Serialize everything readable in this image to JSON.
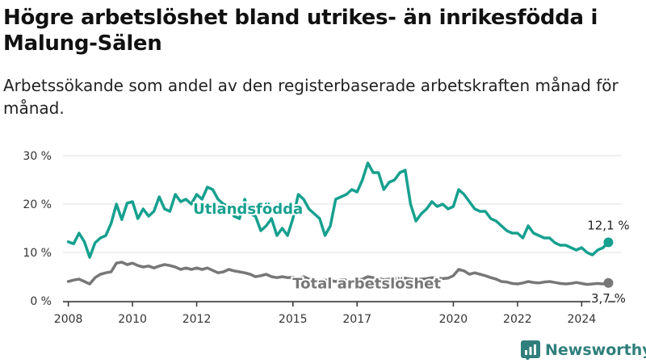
{
  "header": {
    "title": "Högre arbetslöshet bland utrikes- än inrikesfödda i Malung-Sälen",
    "subtitle": "Arbetssökande som andel av den registerbaserade arbetskraften månad för månad."
  },
  "brand": {
    "name": "Newsworthy",
    "icon": "bar-chart-logo-icon",
    "color": "#2f7f7c"
  },
  "colors": {
    "foreign_born": "#17a08f",
    "total": "#777777",
    "grid": "#e0e0e0",
    "axis": "#333333"
  },
  "chart_data": {
    "type": "line",
    "title": "Högre arbetslöshet bland utrikes- än inrikesfödda i Malung-Sälen",
    "subtitle": "Arbetssökande som andel av den registerbaserade arbetskraften månad för månad.",
    "xlabel": "",
    "ylabel": "",
    "xlim": [
      "2007-11",
      "2025-04"
    ],
    "ylim": [
      0,
      30
    ],
    "y_ticks": [
      "0 %",
      "10 %",
      "20 %",
      "30 %"
    ],
    "x_ticks": [
      "2008",
      "2010",
      "2012",
      "2015",
      "2017",
      "2020",
      "2022",
      "2024"
    ],
    "grid": "horizontal",
    "series": [
      {
        "name": "Utlandsfödda",
        "color": "#17a08f",
        "end_label": "12,1 %",
        "points": [
          [
            "2008-01",
            12.2
          ],
          [
            "2008-03",
            11.8
          ],
          [
            "2008-05",
            14.0
          ],
          [
            "2008-07",
            12.2
          ],
          [
            "2008-09",
            9.0
          ],
          [
            "2008-11",
            12.0
          ],
          [
            "2009-01",
            13.0
          ],
          [
            "2009-03",
            13.5
          ],
          [
            "2009-05",
            16.0
          ],
          [
            "2009-07",
            20.0
          ],
          [
            "2009-09",
            16.8
          ],
          [
            "2009-11",
            20.2
          ],
          [
            "2010-01",
            20.5
          ],
          [
            "2010-03",
            17.0
          ],
          [
            "2010-05",
            19.0
          ],
          [
            "2010-07",
            17.5
          ],
          [
            "2010-09",
            18.5
          ],
          [
            "2010-11",
            21.5
          ],
          [
            "2011-01",
            19.0
          ],
          [
            "2011-03",
            18.5
          ],
          [
            "2011-05",
            22.0
          ],
          [
            "2011-07",
            20.5
          ],
          [
            "2011-09",
            21.0
          ],
          [
            "2011-11",
            20.0
          ],
          [
            "2012-01",
            22.0
          ],
          [
            "2012-03",
            21.0
          ],
          [
            "2012-05",
            23.5
          ],
          [
            "2012-07",
            23.0
          ],
          [
            "2012-09",
            21.0
          ],
          [
            "2012-11",
            20.0
          ],
          [
            "2013-01",
            19.5
          ],
          [
            "2013-03",
            17.5
          ],
          [
            "2013-05",
            17.0
          ],
          [
            "2013-07",
            21.0
          ],
          [
            "2013-09",
            18.0
          ],
          [
            "2013-11",
            17.5
          ],
          [
            "2014-01",
            14.5
          ],
          [
            "2014-03",
            15.5
          ],
          [
            "2014-05",
            17.0
          ],
          [
            "2014-07",
            13.5
          ],
          [
            "2014-09",
            15.0
          ],
          [
            "2014-11",
            13.5
          ],
          [
            "2015-01",
            17.0
          ],
          [
            "2015-03",
            22.0
          ],
          [
            "2015-05",
            21.0
          ],
          [
            "2015-07",
            19.0
          ],
          [
            "2015-09",
            18.0
          ],
          [
            "2015-11",
            17.0
          ],
          [
            "2016-01",
            13.5
          ],
          [
            "2016-03",
            15.5
          ],
          [
            "2016-05",
            21.0
          ],
          [
            "2016-07",
            21.5
          ],
          [
            "2016-09",
            22.0
          ],
          [
            "2016-11",
            23.0
          ],
          [
            "2017-01",
            22.5
          ],
          [
            "2017-03",
            25.0
          ],
          [
            "2017-05",
            28.5
          ],
          [
            "2017-07",
            26.5
          ],
          [
            "2017-09",
            26.5
          ],
          [
            "2017-11",
            23.0
          ],
          [
            "2018-01",
            24.5
          ],
          [
            "2018-03",
            25.0
          ],
          [
            "2018-05",
            26.5
          ],
          [
            "2018-07",
            27.0
          ],
          [
            "2018-09",
            20.0
          ],
          [
            "2018-11",
            16.5
          ],
          [
            "2019-01",
            18.0
          ],
          [
            "2019-03",
            19.0
          ],
          [
            "2019-05",
            20.5
          ],
          [
            "2019-07",
            19.5
          ],
          [
            "2019-09",
            20.0
          ],
          [
            "2019-11",
            19.0
          ],
          [
            "2020-01",
            19.5
          ],
          [
            "2020-03",
            23.0
          ],
          [
            "2020-05",
            22.0
          ],
          [
            "2020-07",
            20.5
          ],
          [
            "2020-09",
            19.0
          ],
          [
            "2020-11",
            18.5
          ],
          [
            "2021-01",
            18.5
          ],
          [
            "2021-03",
            17.0
          ],
          [
            "2021-05",
            16.5
          ],
          [
            "2021-07",
            15.5
          ],
          [
            "2021-09",
            14.5
          ],
          [
            "2021-11",
            14.0
          ],
          [
            "2022-01",
            14.0
          ],
          [
            "2022-03",
            13.0
          ],
          [
            "2022-05",
            15.5
          ],
          [
            "2022-07",
            14.0
          ],
          [
            "2022-09",
            13.5
          ],
          [
            "2022-11",
            13.0
          ],
          [
            "2023-01",
            13.0
          ],
          [
            "2023-03",
            12.0
          ],
          [
            "2023-05",
            11.5
          ],
          [
            "2023-07",
            11.5
          ],
          [
            "2023-09",
            11.0
          ],
          [
            "2023-11",
            10.5
          ],
          [
            "2024-01",
            11.0
          ],
          [
            "2024-03",
            10.0
          ],
          [
            "2024-05",
            9.5
          ],
          [
            "2024-07",
            10.5
          ],
          [
            "2024-09",
            11.0
          ],
          [
            "2024-11",
            12.1
          ]
        ]
      },
      {
        "name": "Total arbetslöshet",
        "color": "#777777",
        "end_label": "3,7 %",
        "points": [
          [
            "2008-01",
            4.0
          ],
          [
            "2008-03",
            4.3
          ],
          [
            "2008-05",
            4.5
          ],
          [
            "2008-07",
            4.0
          ],
          [
            "2008-09",
            3.5
          ],
          [
            "2008-11",
            4.8
          ],
          [
            "2009-01",
            5.5
          ],
          [
            "2009-03",
            5.8
          ],
          [
            "2009-05",
            6.0
          ],
          [
            "2009-07",
            7.8
          ],
          [
            "2009-09",
            8.0
          ],
          [
            "2009-11",
            7.5
          ],
          [
            "2010-01",
            7.8
          ],
          [
            "2010-03",
            7.3
          ],
          [
            "2010-05",
            7.0
          ],
          [
            "2010-07",
            7.2
          ],
          [
            "2010-09",
            6.8
          ],
          [
            "2010-11",
            7.2
          ],
          [
            "2011-01",
            7.5
          ],
          [
            "2011-03",
            7.3
          ],
          [
            "2011-05",
            7.0
          ],
          [
            "2011-07",
            6.5
          ],
          [
            "2011-09",
            6.8
          ],
          [
            "2011-11",
            6.5
          ],
          [
            "2012-01",
            6.8
          ],
          [
            "2012-03",
            6.5
          ],
          [
            "2012-05",
            6.8
          ],
          [
            "2012-07",
            6.3
          ],
          [
            "2012-09",
            5.8
          ],
          [
            "2012-11",
            6.0
          ],
          [
            "2013-01",
            6.5
          ],
          [
            "2013-03",
            6.2
          ],
          [
            "2013-05",
            6.0
          ],
          [
            "2013-07",
            5.8
          ],
          [
            "2013-09",
            5.5
          ],
          [
            "2013-11",
            5.0
          ],
          [
            "2014-01",
            5.2
          ],
          [
            "2014-03",
            5.5
          ],
          [
            "2014-05",
            5.0
          ],
          [
            "2014-07",
            4.8
          ],
          [
            "2014-09",
            5.0
          ],
          [
            "2014-11",
            4.8
          ],
          [
            "2015-01",
            4.9
          ],
          [
            "2015-03",
            4.6
          ],
          [
            "2015-05",
            5.0
          ],
          [
            "2015-07",
            4.5
          ],
          [
            "2015-09",
            4.3
          ],
          [
            "2015-11",
            4.2
          ],
          [
            "2016-01",
            4.3
          ],
          [
            "2016-03",
            4.2
          ],
          [
            "2016-05",
            4.0
          ],
          [
            "2016-07",
            4.4
          ],
          [
            "2016-09",
            4.3
          ],
          [
            "2016-11",
            4.1
          ],
          [
            "2017-01",
            4.3
          ],
          [
            "2017-03",
            4.5
          ],
          [
            "2017-05",
            5.0
          ],
          [
            "2017-07",
            4.8
          ],
          [
            "2017-09",
            4.6
          ],
          [
            "2017-11",
            4.4
          ],
          [
            "2018-01",
            4.5
          ],
          [
            "2018-03",
            4.6
          ],
          [
            "2018-05",
            4.8
          ],
          [
            "2018-07",
            4.7
          ],
          [
            "2018-09",
            4.5
          ],
          [
            "2018-11",
            4.4
          ],
          [
            "2019-01",
            4.5
          ],
          [
            "2019-03",
            4.6
          ],
          [
            "2019-05",
            4.8
          ],
          [
            "2019-07",
            4.7
          ],
          [
            "2019-09",
            4.6
          ],
          [
            "2019-11",
            4.7
          ],
          [
            "2020-01",
            5.2
          ],
          [
            "2020-03",
            6.5
          ],
          [
            "2020-05",
            6.2
          ],
          [
            "2020-07",
            5.5
          ],
          [
            "2020-09",
            5.8
          ],
          [
            "2020-11",
            5.5
          ],
          [
            "2021-01",
            5.2
          ],
          [
            "2021-03",
            4.8
          ],
          [
            "2021-05",
            4.5
          ],
          [
            "2021-07",
            4.0
          ],
          [
            "2021-09",
            3.9
          ],
          [
            "2021-11",
            3.6
          ],
          [
            "2022-01",
            3.5
          ],
          [
            "2022-03",
            3.7
          ],
          [
            "2022-05",
            4.0
          ],
          [
            "2022-07",
            3.8
          ],
          [
            "2022-09",
            3.7
          ],
          [
            "2022-11",
            3.9
          ],
          [
            "2023-01",
            4.0
          ],
          [
            "2023-03",
            3.8
          ],
          [
            "2023-05",
            3.6
          ],
          [
            "2023-07",
            3.5
          ],
          [
            "2023-09",
            3.6
          ],
          [
            "2023-11",
            3.8
          ],
          [
            "2024-01",
            3.6
          ],
          [
            "2024-03",
            3.4
          ],
          [
            "2024-05",
            3.5
          ],
          [
            "2024-07",
            3.6
          ],
          [
            "2024-09",
            3.5
          ],
          [
            "2024-11",
            3.7
          ]
        ]
      }
    ]
  }
}
